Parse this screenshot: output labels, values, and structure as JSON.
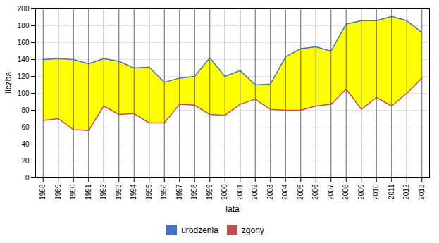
{
  "chart_data": {
    "type": "line",
    "xlabel": "lata",
    "ylabel": "liczba",
    "x": [
      1988,
      1989,
      1990,
      1991,
      1992,
      1993,
      1994,
      1995,
      1996,
      1997,
      1998,
      1999,
      2000,
      2001,
      2002,
      2003,
      2004,
      2005,
      2006,
      2007,
      2008,
      2009,
      2010,
      2011,
      2012,
      2013
    ],
    "series": [
      {
        "name": "urodzenia",
        "color": "#4472c4",
        "values": [
          140,
          141,
          140,
          135,
          141,
          138,
          130,
          131,
          113,
          118,
          120,
          142,
          120,
          127,
          110,
          111,
          143,
          153,
          155,
          150,
          182,
          186,
          186,
          191,
          186,
          172
        ]
      },
      {
        "name": "zgony",
        "color": "#c0504d",
        "values": [
          68,
          70,
          57,
          56,
          85,
          75,
          76,
          65,
          65,
          87,
          86,
          75,
          74,
          87,
          93,
          81,
          80,
          80,
          85,
          87,
          105,
          81,
          95,
          85,
          100,
          118
        ]
      }
    ],
    "color": "#ffff00",
    "xlim": [
      1987.5,
      2013.5
    ],
    "xticks": [
      1988,
      1989,
      1990,
      1991,
      1992,
      1993,
      1994,
      1995,
      1996,
      1997,
      1998,
      1999,
      2000,
      2001,
      2002,
      2003,
      2004,
      2005,
      2006,
      2007,
      2008,
      2009,
      2010,
      2011,
      2012,
      2013
    ],
    "ylim": [
      0,
      200
    ],
    "yticks": [
      0,
      20,
      40,
      60,
      80,
      100,
      120,
      140,
      160,
      180,
      200
    ],
    "grid": true,
    "legend": "bottom"
  }
}
